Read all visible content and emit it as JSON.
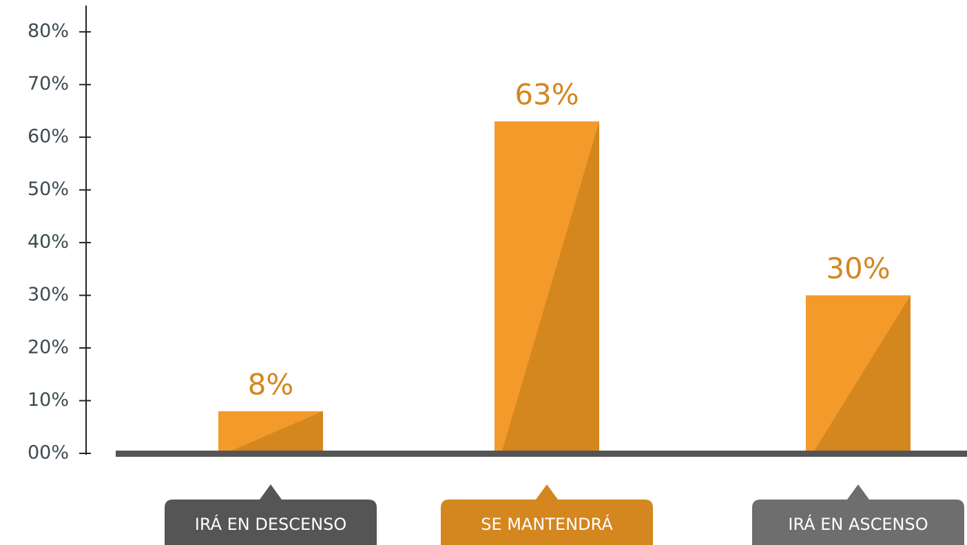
{
  "chart_data": {
    "type": "bar",
    "categories": [
      "IRÁ EN DESCENSO",
      "SE MANTENDRÁ",
      "IRÁ EN ASCENSO"
    ],
    "values": [
      8,
      63,
      30
    ],
    "value_labels": [
      "8%",
      "63%",
      "30%"
    ],
    "color": "#f39a2b",
    "shade_color": "#d4861f",
    "category_colors": [
      "#555555",
      "#d4861f",
      "#6e6e6e"
    ],
    "ylim": [
      0,
      85
    ],
    "yticks": [
      {
        "value": 0,
        "label": "00%"
      },
      {
        "value": 10,
        "label": "10%"
      },
      {
        "value": 20,
        "label": "20%"
      },
      {
        "value": 30,
        "label": "30%"
      },
      {
        "value": 40,
        "label": "40%"
      },
      {
        "value": 50,
        "label": "50%"
      },
      {
        "value": 60,
        "label": "60%"
      },
      {
        "value": 70,
        "label": "70%"
      },
      {
        "value": 80,
        "label": "80%"
      }
    ]
  }
}
